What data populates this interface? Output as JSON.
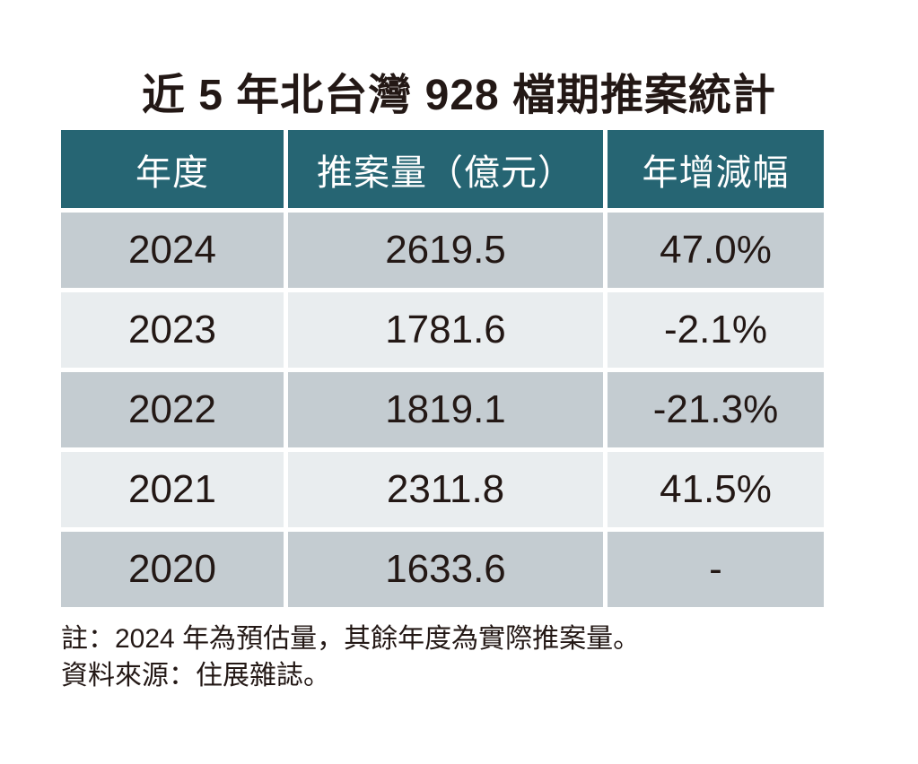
{
  "title": "近 5 年北台灣 928 檔期推案統計",
  "table": {
    "columns": [
      "年度",
      "推案量（億元）",
      "年增減幅"
    ],
    "rows": [
      {
        "year": "2024",
        "volume": "2619.5",
        "change": "47.0%"
      },
      {
        "year": "2023",
        "volume": "1781.6",
        "change": "-2.1%"
      },
      {
        "year": "2022",
        "volume": "1819.1",
        "change": "-21.3%"
      },
      {
        "year": "2021",
        "volume": "2311.8",
        "change": "41.5%"
      },
      {
        "year": "2020",
        "volume": "1633.6",
        "change": "-"
      }
    ]
  },
  "notes": [
    "註：2024 年為預估量，其餘年度為實際推案量。",
    "資料來源：住展雜誌。"
  ],
  "colors": {
    "header_bg": "#266573",
    "header_text": "#ffffff",
    "row_dark": "#c4ccd1",
    "row_light": "#e9edef",
    "text": "#231815"
  },
  "chart_data": {
    "type": "table",
    "title": "近 5 年北台灣 928 檔期推案統計",
    "columns": [
      "年度",
      "推案量（億元）",
      "年增減幅"
    ],
    "rows": [
      [
        "2024",
        2619.5,
        "47.0%"
      ],
      [
        "2023",
        1781.6,
        "-2.1%"
      ],
      [
        "2022",
        1819.1,
        "-21.3%"
      ],
      [
        "2021",
        2311.8,
        "41.5%"
      ],
      [
        "2020",
        1633.6,
        "-"
      ]
    ],
    "notes": [
      "註：2024 年為預估量，其餘年度為實際推案量。",
      "資料來源：住展雜誌。"
    ],
    "layout": {
      "header_style": "teal background, white text",
      "row_striping": "alternating gray-blue / light gray starting dark at 2024",
      "cell_alignment": "center",
      "notes_position": "below table, left-aligned"
    }
  }
}
